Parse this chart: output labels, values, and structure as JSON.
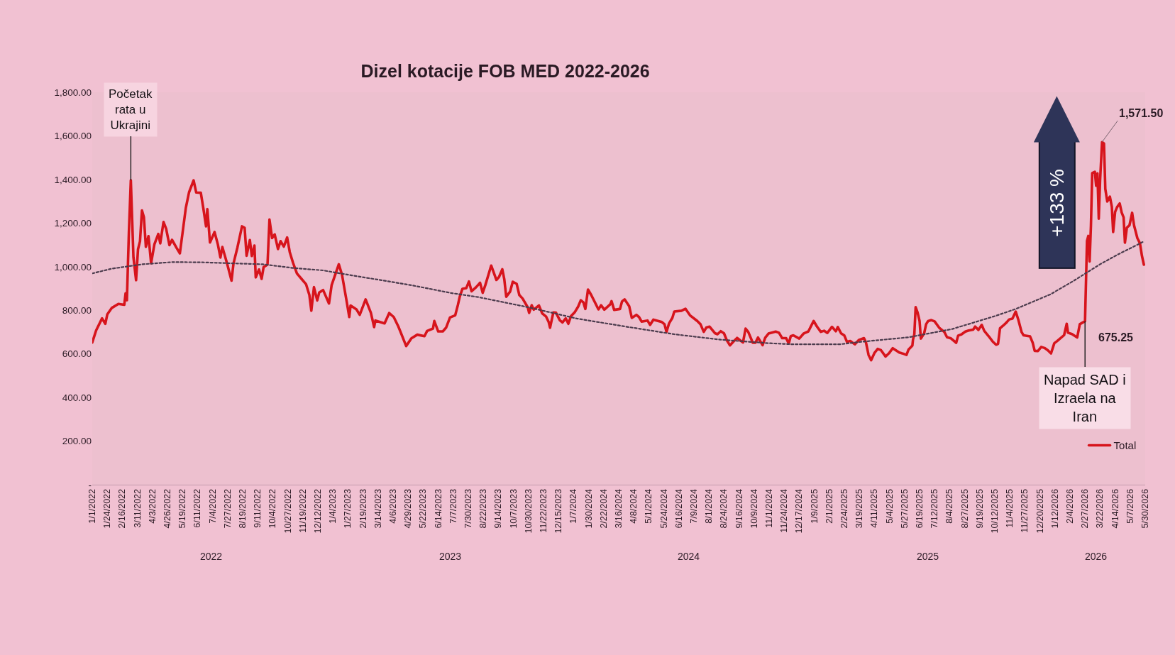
{
  "chart_data": {
    "type": "line",
    "title": "Dizel kotacije FOB MED 2022-2026",
    "xlim": [
      "2022-01-01",
      "2026-05-30"
    ],
    "xticks": [
      {
        "value": "2022-01-01",
        "label": "1/1/2022"
      },
      {
        "value": "2022-01-24",
        "label": "1/24/2022"
      },
      {
        "value": "2022-02-16",
        "label": "2/16/2022"
      },
      {
        "value": "2022-03-11",
        "label": "3/11/2022"
      },
      {
        "value": "2022-04-03",
        "label": "4/3/2022"
      },
      {
        "value": "2022-04-26",
        "label": "4/26/2022"
      },
      {
        "value": "2022-05-19",
        "label": "5/19/2022"
      },
      {
        "value": "2022-06-11",
        "label": "6/11/2022"
      },
      {
        "value": "2022-07-04",
        "label": "7/4/2022"
      },
      {
        "value": "2022-07-27",
        "label": "7/27/2022"
      },
      {
        "value": "2022-08-19",
        "label": "8/19/2022"
      },
      {
        "value": "2022-09-11",
        "label": "9/11/2022"
      },
      {
        "value": "2022-10-04",
        "label": "10/4/2022"
      },
      {
        "value": "2022-10-27",
        "label": "10/27/2022"
      },
      {
        "value": "2022-11-19",
        "label": "11/19/2022"
      },
      {
        "value": "2022-12-12",
        "label": "12/12/2022"
      },
      {
        "value": "2023-01-04",
        "label": "1/4/2023"
      },
      {
        "value": "2023-01-27",
        "label": "1/27/2023"
      },
      {
        "value": "2023-02-19",
        "label": "2/19/2023"
      },
      {
        "value": "2023-03-14",
        "label": "3/14/2023"
      },
      {
        "value": "2023-04-06",
        "label": "4/6/2023"
      },
      {
        "value": "2023-04-29",
        "label": "4/29/2023"
      },
      {
        "value": "2023-05-22",
        "label": "5/22/2023"
      },
      {
        "value": "2023-06-14",
        "label": "6/14/2023"
      },
      {
        "value": "2023-07-07",
        "label": "7/7/2023"
      },
      {
        "value": "2023-07-30",
        "label": "7/30/2023"
      },
      {
        "value": "2023-08-22",
        "label": "8/22/2023"
      },
      {
        "value": "2023-09-14",
        "label": "9/14/2023"
      },
      {
        "value": "2023-10-07",
        "label": "10/7/2023"
      },
      {
        "value": "2023-10-30",
        "label": "10/30/2023"
      },
      {
        "value": "2023-11-22",
        "label": "11/22/2023"
      },
      {
        "value": "2023-12-15",
        "label": "12/15/2023"
      },
      {
        "value": "2024-01-07",
        "label": "1/7/2024"
      },
      {
        "value": "2024-01-30",
        "label": "1/30/2024"
      },
      {
        "value": "2024-02-22",
        "label": "2/22/2024"
      },
      {
        "value": "2024-03-16",
        "label": "3/16/2024"
      },
      {
        "value": "2024-04-08",
        "label": "4/8/2024"
      },
      {
        "value": "2024-05-01",
        "label": "5/1/2024"
      },
      {
        "value": "2024-05-24",
        "label": "5/24/2024"
      },
      {
        "value": "2024-06-16",
        "label": "6/16/2024"
      },
      {
        "value": "2024-07-09",
        "label": "7/9/2024"
      },
      {
        "value": "2024-08-01",
        "label": "8/1/2024"
      },
      {
        "value": "2024-08-24",
        "label": "8/24/2024"
      },
      {
        "value": "2024-09-16",
        "label": "9/16/2024"
      },
      {
        "value": "2024-10-09",
        "label": "10/9/2024"
      },
      {
        "value": "2024-11-01",
        "label": "11/1/2024"
      },
      {
        "value": "2024-11-24",
        "label": "11/24/2024"
      },
      {
        "value": "2024-12-17",
        "label": "12/17/2024"
      },
      {
        "value": "2025-01-09",
        "label": "1/9/2025"
      },
      {
        "value": "2025-02-01",
        "label": "2/1/2025"
      },
      {
        "value": "2025-02-24",
        "label": "2/24/2025"
      },
      {
        "value": "2025-03-19",
        "label": "3/19/2025"
      },
      {
        "value": "2025-04-11",
        "label": "4/11/2025"
      },
      {
        "value": "2025-05-04",
        "label": "5/4/2025"
      },
      {
        "value": "2025-05-27",
        "label": "5/27/2025"
      },
      {
        "value": "2025-06-19",
        "label": "6/19/2025"
      },
      {
        "value": "2025-07-12",
        "label": "7/12/2025"
      },
      {
        "value": "2025-08-04",
        "label": "8/4/2025"
      },
      {
        "value": "2025-08-27",
        "label": "8/27/2025"
      },
      {
        "value": "2025-09-19",
        "label": "9/19/2025"
      },
      {
        "value": "2025-10-12",
        "label": "10/12/2025"
      },
      {
        "value": "2025-11-04",
        "label": "11/4/2025"
      },
      {
        "value": "2025-11-27",
        "label": "11/27/2025"
      },
      {
        "value": "2025-12-20",
        "label": "12/20/2025"
      },
      {
        "value": "2026-01-12",
        "label": "1/12/2026"
      },
      {
        "value": "2026-02-04",
        "label": "2/4/2026"
      },
      {
        "value": "2026-02-27",
        "label": "2/27/2026"
      },
      {
        "value": "2026-03-22",
        "label": "3/22/2026"
      },
      {
        "value": "2026-04-14",
        "label": "4/14/2026"
      },
      {
        "value": "2026-05-07",
        "label": "5/7/2026"
      },
      {
        "value": "2026-05-30",
        "label": "5/30/2026"
      }
    ],
    "ylim": [
      0,
      1800
    ],
    "yticks": [
      {
        "value": 0,
        "label": "-"
      },
      {
        "value": 200,
        "label": "200.00"
      },
      {
        "value": 400,
        "label": "400.00"
      },
      {
        "value": 600,
        "label": "600.00"
      },
      {
        "value": 800,
        "label": "800.00"
      },
      {
        "value": 1000,
        "label": "1,000.00"
      },
      {
        "value": 1200,
        "label": "1,200.00"
      },
      {
        "value": 1400,
        "label": "1,400.00"
      },
      {
        "value": 1600,
        "label": "1,600.00"
      },
      {
        "value": 1800,
        "label": "1,800.00"
      }
    ],
    "legend": "bottom right",
    "series": [
      {
        "name": "Total",
        "color": "#d7141c",
        "line_style": "solid",
        "x": [
          "2022-01-01",
          "2022-01-07",
          "2022-01-16",
          "2022-01-21",
          "2022-01-24",
          "2022-01-31",
          "2022-02-10",
          "2022-02-19",
          "2022-02-21",
          "2022-02-23",
          "2022-02-26",
          "2022-03-01",
          "2022-03-05",
          "2022-03-09",
          "2022-03-12",
          "2022-03-15",
          "2022-03-18",
          "2022-03-21",
          "2022-03-24",
          "2022-03-28",
          "2022-04-01",
          "2022-04-06",
          "2022-04-12",
          "2022-04-15",
          "2022-04-20",
          "2022-04-24",
          "2022-04-29",
          "2022-05-03",
          "2022-05-10",
          "2022-05-15",
          "2022-05-24",
          "2022-05-29",
          "2022-06-05",
          "2022-06-09",
          "2022-06-16",
          "2022-06-20",
          "2022-06-24",
          "2022-06-26",
          "2022-06-30",
          "2022-07-07",
          "2022-07-12",
          "2022-07-16",
          "2022-07-19",
          "2022-07-26",
          "2022-08-02",
          "2022-08-05",
          "2022-08-11",
          "2022-08-18",
          "2022-08-22",
          "2022-08-25",
          "2022-08-30",
          "2022-09-02",
          "2022-09-06",
          "2022-09-08",
          "2022-09-13",
          "2022-09-17",
          "2022-09-20",
          "2022-09-26",
          "2022-09-29",
          "2022-10-03",
          "2022-10-07",
          "2022-10-12",
          "2022-10-16",
          "2022-10-21",
          "2022-10-26",
          "2022-10-30",
          "2022-11-04",
          "2022-11-10",
          "2022-11-17",
          "2022-11-24",
          "2022-11-29",
          "2022-12-02",
          "2022-12-06",
          "2022-12-11",
          "2022-12-14",
          "2022-12-20",
          "2022-12-29",
          "2023-01-02",
          "2023-01-13",
          "2023-01-18",
          "2023-01-25",
          "2023-01-29",
          "2023-01-31",
          "2023-02-09",
          "2023-02-14",
          "2023-02-23",
          "2023-03-03",
          "2023-03-08",
          "2023-03-10",
          "2023-03-24",
          "2023-03-31",
          "2023-04-07",
          "2023-04-14",
          "2023-04-18",
          "2023-04-26",
          "2023-05-04",
          "2023-05-13",
          "2023-05-24",
          "2023-05-28",
          "2023-06-06",
          "2023-06-08",
          "2023-06-14",
          "2023-06-21",
          "2023-06-26",
          "2023-07-02",
          "2023-07-10",
          "2023-07-14",
          "2023-07-17",
          "2023-07-21",
          "2023-07-27",
          "2023-07-31",
          "2023-08-04",
          "2023-08-11",
          "2023-08-17",
          "2023-08-21",
          "2023-08-25",
          "2023-08-31",
          "2023-09-03",
          "2023-09-08",
          "2023-09-11",
          "2023-09-15",
          "2023-09-20",
          "2023-09-23",
          "2023-09-26",
          "2023-10-02",
          "2023-10-06",
          "2023-10-12",
          "2023-10-16",
          "2023-10-21",
          "2023-10-29",
          "2023-10-31",
          "2023-11-04",
          "2023-11-07",
          "2023-11-15",
          "2023-11-20",
          "2023-11-26",
          "2023-11-30",
          "2023-12-02",
          "2023-12-07",
          "2023-12-11",
          "2023-12-17",
          "2023-12-21",
          "2023-12-26",
          "2023-12-30",
          "2024-01-03",
          "2024-01-09",
          "2024-01-14",
          "2024-01-18",
          "2024-01-22",
          "2024-01-25",
          "2024-01-29",
          "2024-02-03",
          "2024-02-09",
          "2024-02-14",
          "2024-02-18",
          "2024-02-23",
          "2024-03-03",
          "2024-03-05",
          "2024-03-09",
          "2024-03-18",
          "2024-03-21",
          "2024-03-25",
          "2024-04-01",
          "2024-04-05",
          "2024-04-12",
          "2024-04-16",
          "2024-04-20",
          "2024-04-29",
          "2024-05-03",
          "2024-05-08",
          "2024-05-21",
          "2024-05-25",
          "2024-05-28",
          "2024-06-01",
          "2024-06-06",
          "2024-06-09",
          "2024-06-20",
          "2024-06-26",
          "2024-07-03",
          "2024-07-14",
          "2024-07-19",
          "2024-07-24",
          "2024-07-28",
          "2024-08-02",
          "2024-08-10",
          "2024-08-14",
          "2024-08-19",
          "2024-08-24",
          "2024-08-28",
          "2024-09-02",
          "2024-09-08",
          "2024-09-13",
          "2024-09-22",
          "2024-09-26",
          "2024-09-30",
          "2024-10-07",
          "2024-10-11",
          "2024-10-15",
          "2024-10-22",
          "2024-10-26",
          "2024-10-31",
          "2024-11-11",
          "2024-11-16",
          "2024-11-21",
          "2024-11-27",
          "2024-12-01",
          "2024-12-04",
          "2024-12-08",
          "2024-12-17",
          "2024-12-24",
          "2024-12-31",
          "2025-01-08",
          "2025-01-13",
          "2025-01-19",
          "2025-01-24",
          "2025-01-29",
          "2025-02-05",
          "2025-02-11",
          "2025-02-14",
          "2025-02-19",
          "2025-02-24",
          "2025-02-28",
          "2025-03-05",
          "2025-03-12",
          "2025-03-18",
          "2025-03-26",
          "2025-03-29",
          "2025-04-02",
          "2025-04-06",
          "2025-04-11",
          "2025-04-16",
          "2025-04-21",
          "2025-04-28",
          "2025-05-03",
          "2025-05-09",
          "2025-05-14",
          "2025-05-19",
          "2025-05-25",
          "2025-05-30",
          "2025-06-02",
          "2025-06-08",
          "2025-06-09",
          "2025-06-11",
          "2025-06-13",
          "2025-06-16",
          "2025-06-19",
          "2025-06-21",
          "2025-06-26",
          "2025-06-29",
          "2025-07-02",
          "2025-07-07",
          "2025-07-12",
          "2025-07-19",
          "2025-07-27",
          "2025-07-31",
          "2025-08-06",
          "2025-08-14",
          "2025-08-17",
          "2025-08-22",
          "2025-08-28",
          "2025-09-02",
          "2025-09-09",
          "2025-09-12",
          "2025-09-17",
          "2025-09-22",
          "2025-09-26",
          "2025-10-04",
          "2025-10-09",
          "2025-10-14",
          "2025-10-17",
          "2025-10-20",
          "2025-10-25",
          "2025-10-30",
          "2025-11-03",
          "2025-11-08",
          "2025-11-13",
          "2025-11-17",
          "2025-11-22",
          "2025-11-25",
          "2025-12-05",
          "2025-12-09",
          "2025-12-12",
          "2025-12-17",
          "2025-12-22",
          "2025-12-27",
          "2026-01-01",
          "2026-01-06",
          "2026-01-11",
          "2026-01-15",
          "2026-01-26",
          "2026-01-30",
          "2026-02-01",
          "2026-02-07",
          "2026-02-15",
          "2026-02-19",
          "2026-02-27",
          "2026-03-02",
          "2026-03-04",
          "2026-03-06",
          "2026-03-08",
          "2026-03-10",
          "2026-03-14",
          "2026-03-16",
          "2026-03-18",
          "2026-03-20",
          "2026-03-22",
          "2026-03-25",
          "2026-03-28",
          "2026-03-30",
          "2026-04-02",
          "2026-04-06",
          "2026-04-09",
          "2026-04-11",
          "2026-04-14",
          "2026-04-17",
          "2026-04-21",
          "2026-04-24",
          "2026-04-27",
          "2026-04-29",
          "2026-05-02",
          "2026-05-06",
          "2026-05-10",
          "2026-05-13",
          "2026-05-15",
          "2026-05-18",
          "2026-05-22",
          "2026-05-25",
          "2026-05-28"
        ],
        "values": [
          652,
          708,
          763,
          738,
          781,
          811,
          829,
          825,
          878,
          846,
          1155,
          1396,
          1043,
          938,
          1080,
          1116,
          1258,
          1227,
          1091,
          1140,
          1016,
          1102,
          1150,
          1107,
          1205,
          1174,
          1099,
          1123,
          1086,
          1061,
          1268,
          1341,
          1396,
          1340,
          1339,
          1265,
          1185,
          1264,
          1111,
          1159,
          1103,
          1042,
          1090,
          1016,
          936,
          1015,
          1088,
          1185,
          1178,
          1050,
          1122,
          1049,
          1097,
          951,
          987,
          944,
          998,
          1010,
          1216,
          1131,
          1148,
          1081,
          1117,
          1092,
          1134,
          1067,
          1018,
          969,
          944,
          919,
          870,
          798,
          906,
          845,
          881,
          893,
          831,
          915,
          1011,
          962,
          841,
          769,
          822,
          804,
          779,
          850,
          789,
          723,
          753,
          740,
          787,
          769,
          726,
          696,
          636,
          671,
          688,
          681,
          705,
          716,
          751,
          703,
          703,
          720,
          767,
          777,
          823,
          863,
          898,
          902,
          932,
          887,
          906,
          926,
          880,
          915,
          975,
          1005,
          964,
          939,
          953,
          988,
          943,
          862,
          886,
          931,
          921,
          870,
          854,
          813,
          788,
          823,
          803,
          822,
          786,
          771,
          745,
          720,
          790,
          789,
          754,
          744,
          763,
          738,
          773,
          792,
          817,
          846,
          836,
          806,
          895,
          870,
          834,
          804,
          823,
          803,
          827,
          842,
          802,
          806,
          840,
          850,
          819,
          765,
          779,
          769,
          748,
          753,
          733,
          757,
          746,
          736,
          701,
          740,
          765,
          794,
          798,
          807,
          777,
          751,
          736,
          701,
          721,
          725,
          695,
          690,
          704,
          694,
          664,
          639,
          658,
          673,
          652,
          716,
          701,
          651,
          651,
          675,
          640,
          674,
          693,
          702,
          697,
          672,
          672,
          647,
          681,
          685,
          670,
          694,
          703,
          751,
          726,
          701,
          706,
          696,
          724,
          704,
          723,
          694,
          684,
          655,
          659,
          644,
          663,
          672,
          653,
          595,
          571,
          604,
          623,
          617,
          588,
          602,
          626,
          616,
          606,
          601,
          595,
          619,
          638,
          666,
          690,
          814,
          790,
          751,
          670,
          694,
          736,
          750,
          755,
          749,
          720,
          700,
          676,
          671,
          651,
          684,
          689,
          702,
          707,
          711,
          725,
          710,
          733,
          705,
          676,
          656,
          642,
          646,
          717,
          730,
          744,
          758,
          762,
          794,
          757,
          700,
          685,
          680,
          651,
          614,
          613,
          632,
          627,
          617,
          602,
          649,
          658,
          686,
          738,
          697,
          691,
          675.25,
          736,
          750,
          1118,
          1141,
          1024,
          1186,
          1429,
          1435,
          1371,
          1428,
          1220,
          1393,
          1571.5,
          1565,
          1357,
          1299,
          1321,
          1275,
          1159,
          1251,
          1273,
          1290,
          1249,
          1226,
          1110,
          1179,
          1190,
          1247,
          1189,
          1166,
          1131,
          1107,
          1050,
          1009
        ],
        "value_labels": [
          null,
          null,
          null,
          null,
          null,
          null,
          null,
          null,
          null,
          null,
          null,
          null,
          null,
          null,
          null,
          null,
          null,
          null,
          null,
          null,
          null,
          null,
          null,
          null,
          null,
          null,
          null,
          null,
          null,
          null,
          null,
          null,
          null,
          null,
          null,
          null,
          null,
          null,
          null,
          null,
          null,
          null,
          null,
          null,
          null,
          null,
          null,
          null,
          null,
          null,
          null,
          null,
          null,
          null,
          null,
          null,
          null,
          null,
          null,
          null,
          null,
          null,
          null,
          null,
          null,
          null,
          null,
          null,
          null,
          null,
          null,
          null,
          null,
          null,
          null,
          null,
          null,
          null,
          null,
          null,
          null,
          null,
          null,
          null,
          null,
          null,
          null,
          null,
          null,
          null,
          null,
          null,
          null,
          null,
          null,
          null,
          null,
          null,
          null,
          null,
          null,
          null,
          null,
          null,
          null,
          null,
          null,
          null,
          null,
          null,
          null,
          null,
          null,
          null,
          null,
          null,
          null,
          null,
          null,
          null,
          null,
          null,
          null,
          null,
          null,
          null,
          null,
          null,
          null,
          null,
          null,
          null,
          null,
          null,
          null,
          null,
          null,
          null,
          null,
          null,
          null,
          null,
          null,
          null,
          null,
          null,
          null,
          null,
          null,
          null,
          null,
          null,
          null,
          null,
          null,
          null,
          null,
          null,
          null,
          null,
          null,
          null,
          null,
          null,
          null,
          null,
          null,
          null,
          null,
          null,
          null,
          null,
          null,
          null,
          null,
          null,
          null,
          null,
          null,
          null,
          null,
          null,
          null,
          null,
          null,
          null,
          null,
          null,
          null,
          null,
          null,
          null,
          null,
          null,
          null,
          null,
          null,
          null,
          null,
          null,
          null,
          null,
          null,
          null,
          null,
          null,
          null,
          null,
          null,
          null,
          null,
          null,
          null,
          null,
          null,
          null,
          null,
          null,
          null,
          null,
          null,
          null,
          null,
          null,
          null,
          null,
          null,
          null,
          null,
          null,
          null,
          null,
          null,
          null,
          null,
          null,
          null,
          null,
          null,
          null,
          null,
          null,
          null,
          null,
          null,
          null,
          null,
          null,
          null,
          null,
          null,
          null,
          null,
          null,
          null,
          null,
          null,
          null,
          null,
          null,
          null,
          null,
          null,
          null,
          null,
          null,
          null,
          null,
          null,
          null,
          null,
          null,
          null,
          null,
          null,
          null,
          null,
          null,
          null,
          null,
          null,
          null,
          null,
          null,
          null,
          null,
          null,
          null,
          null,
          null,
          null,
          null,
          null,
          "675.25",
          null,
          null,
          null,
          null,
          null,
          null,
          null,
          null,
          null,
          null,
          null,
          null,
          "1,571.50",
          null,
          null,
          null,
          null,
          null,
          null,
          null,
          null,
          null,
          null,
          null,
          null,
          null,
          null,
          null,
          null,
          null,
          null,
          null,
          null,
          null
        ]
      },
      {
        "color": "#4b3b4d",
        "line_style": "dotted",
        "x": [
          "2022-01-01",
          "2022-01-31",
          "2022-03-19",
          "2022-05-03",
          "2022-06-18",
          "2022-08-05",
          "2022-09-19",
          "2022-11-04",
          "2022-12-20",
          "2023-02-02",
          "2023-03-19",
          "2023-05-04",
          "2023-07-04",
          "2023-08-15",
          "2023-10-31",
          "2024-01-12",
          "2024-03-25",
          "2024-06-09",
          "2024-08-19",
          "2024-10-31",
          "2024-12-06",
          "2025-02-17",
          "2025-03-24",
          "2025-06-02",
          "2025-08-08",
          "2025-10-13",
          "2025-11-13",
          "2026-01-05",
          "2026-02-09",
          "2026-03-22",
          "2026-04-17",
          "2026-05-19",
          "2026-05-26"
        ],
        "values": [
          969,
          991,
          1011,
          1021,
          1020,
          1015,
          1011,
          994,
          983,
          960,
          938,
          915,
          879,
          860,
          813,
          762,
          726,
          690,
          665,
          649,
          644,
          644,
          656,
          676,
          714,
          774,
          806,
          873,
          934,
          1011,
          1054,
          1102,
          1113
        ]
      }
    ],
    "annotations": [
      {
        "text": "Početak rata u Ukrajini",
        "x": "2022-03-01",
        "y": 1396
      },
      {
        "text": "Napad SAD i Izraela na Iran",
        "x": "2026-02-27",
        "y": 750
      },
      "+133 %",
      "2022",
      "2023",
      "2024",
      "2025",
      "2026"
    ]
  }
}
